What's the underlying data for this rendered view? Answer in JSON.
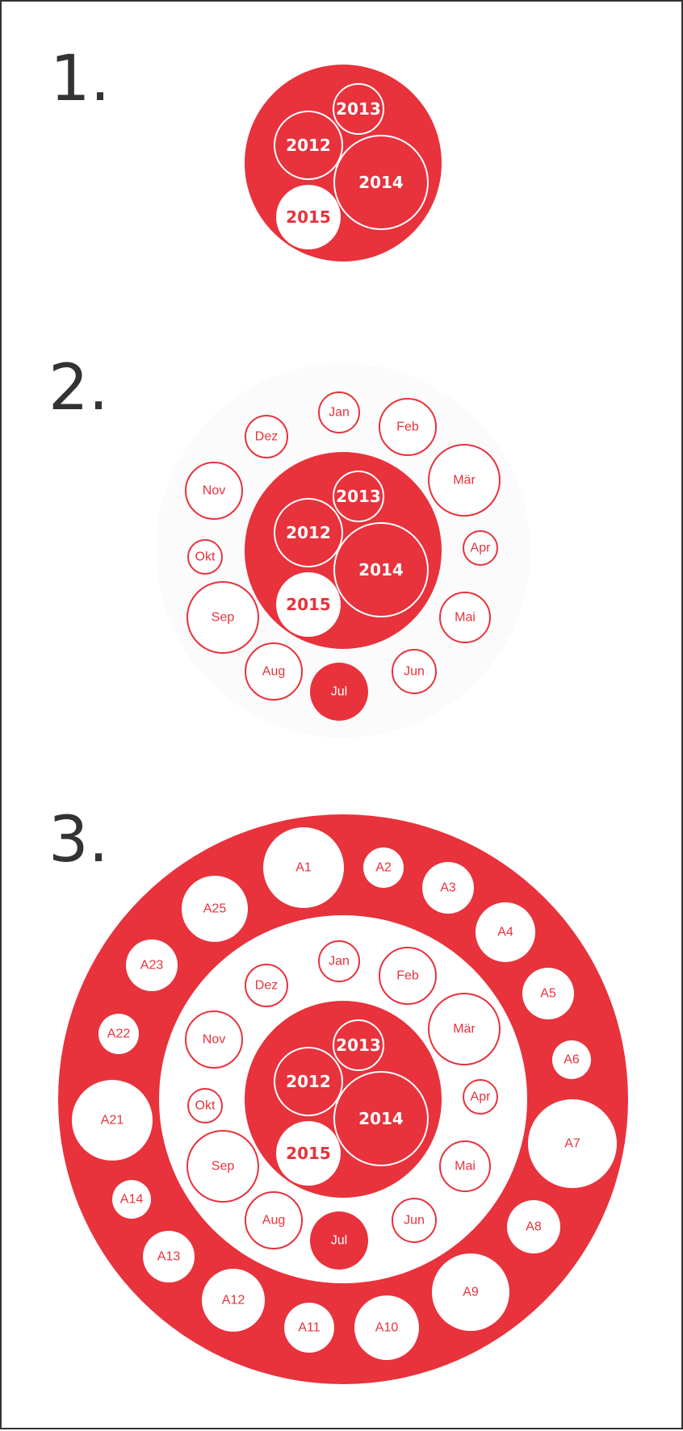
{
  "colors": {
    "red": "#e8323c",
    "white": "#ffffff",
    "dark": "#333333"
  },
  "sections": [
    {
      "number": "1."
    },
    {
      "number": "2."
    },
    {
      "number": "3."
    }
  ],
  "years": [
    "2012",
    "2013",
    "2014",
    "2015"
  ],
  "months": [
    "Jan",
    "Feb",
    "Mär",
    "Apr",
    "Mai",
    "Jun",
    "Jul",
    "Aug",
    "Sep",
    "Okt",
    "Nov",
    "Dez"
  ],
  "outer_items": [
    "A1",
    "A2",
    "A3",
    "A4",
    "A5",
    "A6",
    "A7",
    "A8",
    "A9",
    "A10",
    "A11",
    "A12",
    "A13",
    "A14",
    "A21",
    "A22",
    "A23",
    "A25"
  ]
}
